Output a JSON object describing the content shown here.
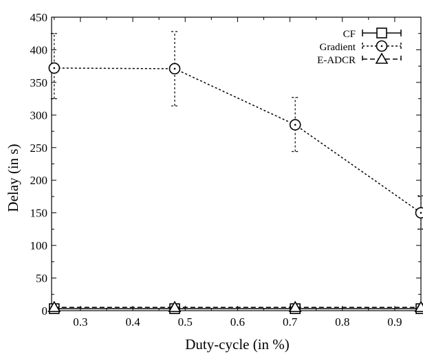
{
  "chart_data": {
    "type": "line",
    "xlabel": "Duty-cycle (in %)",
    "ylabel": "Delay (in s)",
    "xlim": [
      0.245,
      0.95
    ],
    "ylim": [
      0,
      450
    ],
    "xticks": [
      0.3,
      0.4,
      0.5,
      0.6,
      0.7,
      0.8,
      0.9
    ],
    "yticks": [
      0,
      50,
      100,
      150,
      200,
      250,
      300,
      350,
      400,
      450
    ],
    "grid": false,
    "legend_position": "top-right",
    "series": [
      {
        "name": "CF",
        "marker": "square",
        "line": "solid",
        "x": [
          0.25,
          0.48,
          0.71,
          0.95
        ],
        "y": [
          3,
          3,
          3,
          3
        ],
        "err_low": [
          1,
          1,
          1,
          1
        ],
        "err_high": [
          1,
          1,
          1,
          1
        ]
      },
      {
        "name": "Gradient",
        "marker": "circle",
        "line": "dotted",
        "x": [
          0.25,
          0.48,
          0.71,
          0.95
        ],
        "y": [
          372,
          371,
          285,
          150
        ],
        "err_low": [
          325,
          314,
          244,
          125
        ],
        "err_high": [
          425,
          428,
          327,
          176
        ]
      },
      {
        "name": "E-ADCR",
        "marker": "triangle",
        "line": "dashed",
        "x": [
          0.25,
          0.48,
          0.71,
          0.95
        ],
        "y": [
          5,
          5,
          5,
          5
        ],
        "err_low": [
          3,
          3,
          3,
          3
        ],
        "err_high": [
          7,
          7,
          7,
          7
        ]
      }
    ]
  }
}
